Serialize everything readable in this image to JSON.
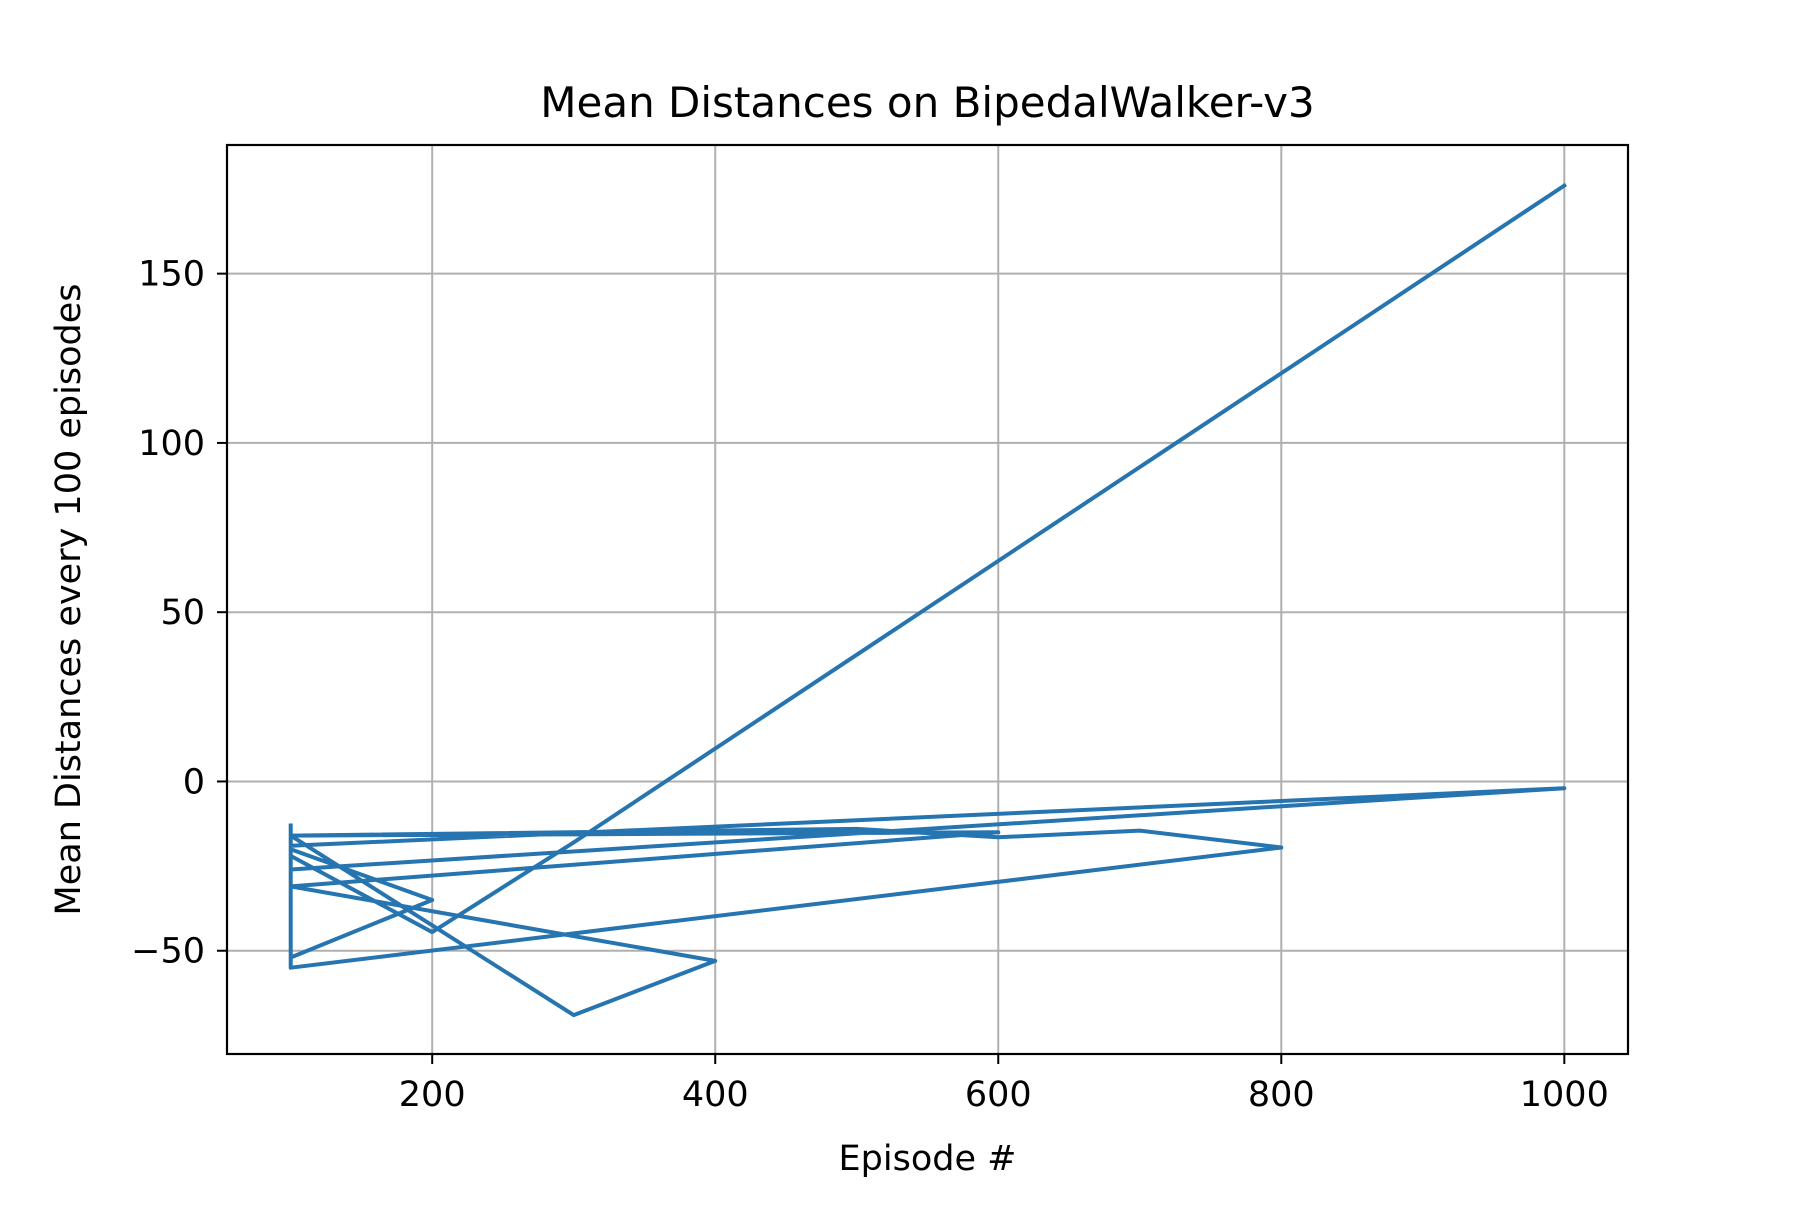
{
  "chart_data": {
    "type": "line",
    "title": "Mean Distances on BipedalWalker-v3",
    "xlabel": "Episode #",
    "ylabel": "Mean Distances every 100 episodes",
    "xlim": [
      55,
      1045
    ],
    "ylim": [
      -80.5,
      188
    ],
    "xticks": [
      200,
      400,
      600,
      800,
      1000
    ],
    "yticks": [
      -50,
      0,
      50,
      100,
      150
    ],
    "xtick_labels": [
      "200",
      "400",
      "600",
      "800",
      "1000"
    ],
    "ytick_labels": [
      "−50",
      "0",
      "50",
      "100",
      "150"
    ],
    "grid": true,
    "series": [
      {
        "color": "#2674b0",
        "x": [
          100,
          100,
          200,
          100,
          100,
          1000,
          100,
          100,
          300,
          400,
          100,
          600,
          100,
          500,
          600,
          700,
          800,
          100,
          100,
          200,
          300,
          1000
        ],
        "y": [
          -13,
          -52,
          -35,
          -20,
          -26,
          -2,
          -19,
          -16,
          -69,
          -53,
          -31,
          -15,
          -16,
          -14,
          -16.5,
          -14.5,
          -19.5,
          -55,
          -22,
          -44.5,
          -18,
          176
        ]
      }
    ]
  }
}
